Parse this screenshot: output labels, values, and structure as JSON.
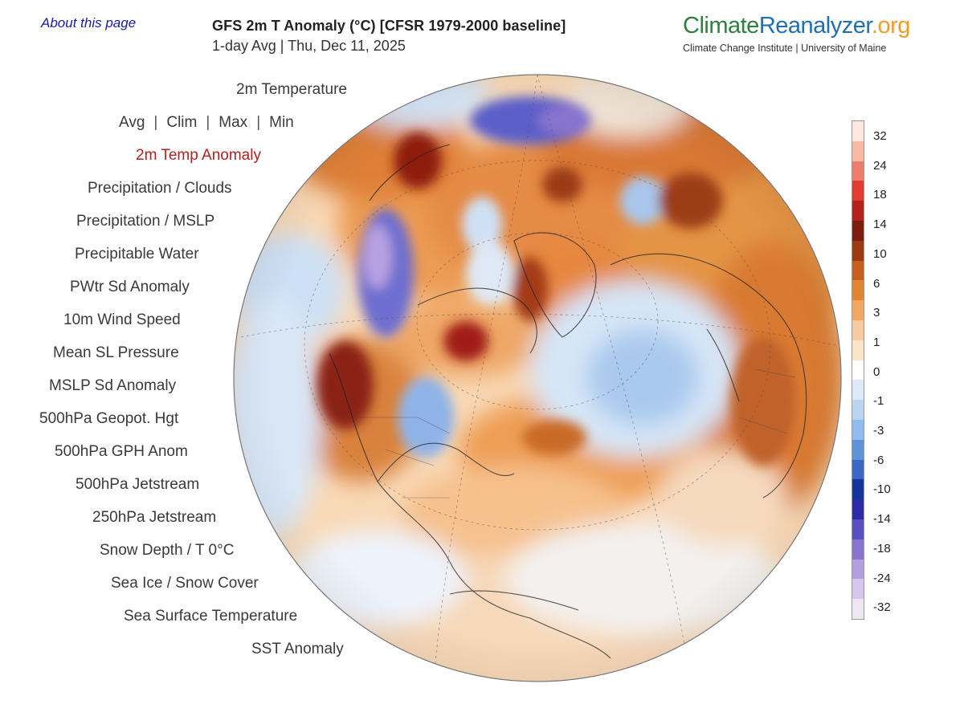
{
  "header": {
    "about_link": "About this page",
    "title": "GFS 2m T Anomaly (°C) [CFSR 1979-2000 baseline]",
    "subtitle": "1-day Avg | Thu, Dec 11, 2025"
  },
  "brand": {
    "name_part1": "Climate",
    "name_part2": "Reanalyzer",
    "name_part3": ".org",
    "tagline": "Climate Change Institute | University of Maine"
  },
  "menu": {
    "temperature": "2m Temperature",
    "stats": {
      "avg": "Avg",
      "clim": "Clim",
      "max": "Max",
      "min": "Min",
      "separator": "|"
    },
    "items": [
      "2m Temp Anomaly",
      "Precipitation / Clouds",
      "Precipitation / MSLP",
      "Precipitable Water",
      "PWtr Sd Anomaly",
      "10m Wind Speed",
      "Mean SL Pressure",
      "MSLP Sd Anomaly",
      "500hPa Geopot. Hgt",
      "500hPa GPH Anom",
      "500hPa Jetstream",
      "250hPa Jetstream",
      "Snow Depth / T 0°C",
      "Sea Ice / Snow Cover",
      "Sea Surface Temperature",
      "SST Anomaly"
    ],
    "active_index": 0
  },
  "legend": {
    "labels": [
      "32",
      "24",
      "18",
      "14",
      "10",
      "6",
      "3",
      "1",
      "0",
      "-1",
      "-3",
      "-6",
      "-10",
      "-14",
      "-18",
      "-24",
      "-32"
    ],
    "colors": [
      "#fde7de",
      "#f7b9a3",
      "#ef7d6c",
      "#e23b2f",
      "#b5221b",
      "#7e1c0f",
      "#9e3a12",
      "#c85e1c",
      "#e18530",
      "#f2a860",
      "#f7cba0",
      "#fbe3c8",
      "#ffffff",
      "#dceaf8",
      "#b9d5f2",
      "#8fbcec",
      "#5f93d8",
      "#3a68c4",
      "#16359c",
      "#2b2aa8",
      "#5a4fc1",
      "#8a74d1",
      "#b39ee0",
      "#d4c6ec",
      "#efe6f4"
    ]
  },
  "map": {
    "description_icon": "orthographic-globe"
  }
}
